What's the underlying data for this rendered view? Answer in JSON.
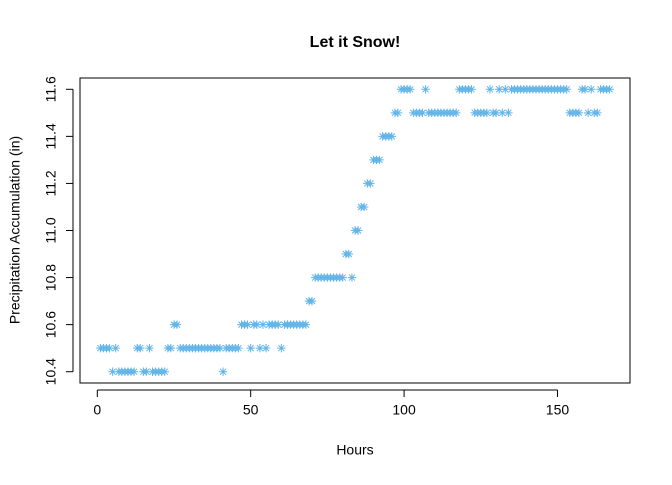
{
  "chart_data": {
    "type": "scatter",
    "title": "Let it Snow!",
    "x_label": "Hours",
    "y_label": "Precipitation Accumulation (in)",
    "color": "#5fb4e8",
    "marker": "asterisk",
    "x": [
      1,
      2,
      3,
      4,
      5,
      6,
      7,
      8,
      9,
      10,
      11,
      12,
      13,
      14,
      15,
      16,
      17,
      18,
      19,
      20,
      21,
      22,
      23,
      24,
      25,
      26,
      27,
      28,
      29,
      30,
      31,
      32,
      33,
      34,
      35,
      36,
      37,
      38,
      39,
      40,
      41,
      42,
      43,
      44,
      45,
      46,
      47,
      48,
      49,
      50,
      51,
      52,
      53,
      54,
      55,
      56,
      57,
      58,
      59,
      60,
      61,
      62,
      63,
      64,
      65,
      66,
      67,
      68,
      69,
      70,
      71,
      72,
      73,
      74,
      75,
      76,
      77,
      78,
      79,
      80,
      81,
      82,
      83,
      84,
      85,
      86,
      87,
      88,
      89,
      90,
      91,
      92,
      93,
      94,
      95,
      96,
      97,
      98,
      99,
      100,
      101,
      102,
      103,
      104,
      105,
      106,
      107,
      108,
      109,
      110,
      111,
      112,
      113,
      114,
      115,
      116,
      117,
      118,
      119,
      120,
      121,
      122,
      123,
      124,
      125,
      126,
      127,
      128,
      129,
      130,
      131,
      132,
      133,
      134,
      135,
      136,
      137,
      138,
      139,
      140,
      141,
      142,
      143,
      144,
      145,
      146,
      147,
      148,
      149,
      150,
      151,
      152,
      153,
      154,
      155,
      156,
      157,
      158,
      159,
      160,
      161,
      162,
      163,
      164,
      165,
      166,
      167
    ],
    "values": [
      10.5,
      10.5,
      10.5,
      10.5,
      10.4,
      10.5,
      10.4,
      10.4,
      10.4,
      10.4,
      10.4,
      10.4,
      10.5,
      10.5,
      10.4,
      10.4,
      10.5,
      10.4,
      10.4,
      10.4,
      10.4,
      10.4,
      10.5,
      10.5,
      10.6,
      10.6,
      10.5,
      10.5,
      10.5,
      10.5,
      10.5,
      10.5,
      10.5,
      10.5,
      10.5,
      10.5,
      10.5,
      10.5,
      10.5,
      10.5,
      10.4,
      10.5,
      10.5,
      10.5,
      10.5,
      10.5,
      10.6,
      10.6,
      10.6,
      10.5,
      10.6,
      10.6,
      10.5,
      10.6,
      10.5,
      10.6,
      10.6,
      10.6,
      10.6,
      10.5,
      10.6,
      10.6,
      10.6,
      10.6,
      10.6,
      10.6,
      10.6,
      10.6,
      10.7,
      10.7,
      10.8,
      10.8,
      10.8,
      10.8,
      10.8,
      10.8,
      10.8,
      10.8,
      10.8,
      10.8,
      10.9,
      10.9,
      10.8,
      11.0,
      11.0,
      11.1,
      11.1,
      11.2,
      11.2,
      11.3,
      11.3,
      11.3,
      11.4,
      11.4,
      11.4,
      11.4,
      11.5,
      11.5,
      11.6,
      11.6,
      11.6,
      11.6,
      11.5,
      11.5,
      11.5,
      11.5,
      11.6,
      11.5,
      11.5,
      11.5,
      11.5,
      11.5,
      11.5,
      11.5,
      11.5,
      11.5,
      11.5,
      11.6,
      11.6,
      11.6,
      11.6,
      11.6,
      11.5,
      11.5,
      11.5,
      11.5,
      11.5,
      11.6,
      11.5,
      11.5,
      11.6,
      11.5,
      11.6,
      11.5,
      11.6,
      11.6,
      11.6,
      11.6,
      11.6,
      11.6,
      11.6,
      11.6,
      11.6,
      11.6,
      11.6,
      11.6,
      11.6,
      11.6,
      11.6,
      11.6,
      11.6,
      11.6,
      11.6,
      11.5,
      11.5,
      11.5,
      11.5,
      11.6,
      11.6,
      11.5,
      11.6,
      11.5,
      11.5,
      11.6,
      11.6,
      11.6,
      11.6
    ],
    "xlim": [
      -5.64,
      173.64
    ],
    "ylim": [
      10.352,
      11.648
    ],
    "xticks": [
      0,
      50,
      100,
      150
    ],
    "yticks": [
      10.4,
      10.6,
      10.8,
      {
        "value": 11,
        "label": "11.0"
      },
      11.2,
      11.4,
      11.6
    ]
  }
}
